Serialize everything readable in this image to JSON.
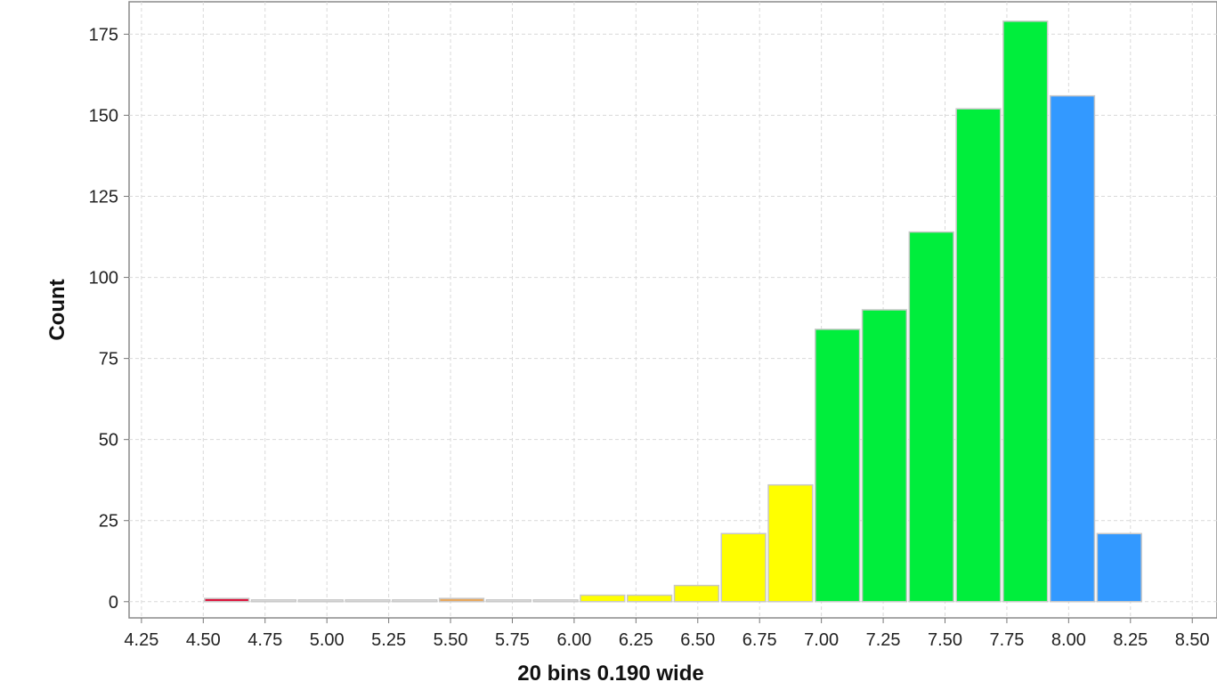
{
  "chart_data": {
    "type": "bar",
    "title": "",
    "xlabel": "20 bins 0.190 wide",
    "ylabel": "Count",
    "xlim": [
      4.2,
      8.6
    ],
    "ylim": [
      -5,
      185
    ],
    "x_ticks": [
      "4.25",
      "4.50",
      "4.75",
      "5.00",
      "5.25",
      "5.50",
      "5.75",
      "6.00",
      "6.25",
      "6.50",
      "6.75",
      "7.00",
      "7.25",
      "7.50",
      "7.75",
      "8.00",
      "8.25",
      "8.50"
    ],
    "y_ticks": [
      "0",
      "25",
      "50",
      "75",
      "100",
      "125",
      "150",
      "175"
    ],
    "grid": true,
    "bin_width": 0.19,
    "bins": [
      {
        "x0": 4.5,
        "x1": 4.69,
        "count": 1,
        "color": "#dc143c"
      },
      {
        "x0": 4.69,
        "x1": 4.88,
        "count": 0,
        "color": "#e6e6e6"
      },
      {
        "x0": 4.88,
        "x1": 5.07,
        "count": 0,
        "color": "#e6e6e6"
      },
      {
        "x0": 5.07,
        "x1": 5.26,
        "count": 0,
        "color": "#e6e6e6"
      },
      {
        "x0": 5.26,
        "x1": 5.45,
        "count": 0,
        "color": "#e6e6e6"
      },
      {
        "x0": 5.45,
        "x1": 5.64,
        "count": 1,
        "color": "#e8a85c"
      },
      {
        "x0": 5.64,
        "x1": 5.83,
        "count": 0,
        "color": "#e6e6e6"
      },
      {
        "x0": 5.83,
        "x1": 6.02,
        "count": 0,
        "color": "#e6e6e6"
      },
      {
        "x0": 6.02,
        "x1": 6.21,
        "count": 2,
        "color": "#ffff00"
      },
      {
        "x0": 6.21,
        "x1": 6.4,
        "count": 2,
        "color": "#ffff00"
      },
      {
        "x0": 6.4,
        "x1": 6.59,
        "count": 5,
        "color": "#ffff00"
      },
      {
        "x0": 6.59,
        "x1": 6.78,
        "count": 21,
        "color": "#ffff00"
      },
      {
        "x0": 6.78,
        "x1": 6.97,
        "count": 36,
        "color": "#ffff00"
      },
      {
        "x0": 6.97,
        "x1": 7.16,
        "count": 84,
        "color": "#00ee3c"
      },
      {
        "x0": 7.16,
        "x1": 7.35,
        "count": 90,
        "color": "#00ee3c"
      },
      {
        "x0": 7.35,
        "x1": 7.54,
        "count": 114,
        "color": "#00ee3c"
      },
      {
        "x0": 7.54,
        "x1": 7.73,
        "count": 152,
        "color": "#00ee3c"
      },
      {
        "x0": 7.73,
        "x1": 7.92,
        "count": 179,
        "color": "#00ee3c"
      },
      {
        "x0": 7.92,
        "x1": 8.11,
        "count": 156,
        "color": "#3399ff"
      },
      {
        "x0": 8.11,
        "x1": 8.3,
        "count": 21,
        "color": "#3399ff"
      }
    ]
  }
}
